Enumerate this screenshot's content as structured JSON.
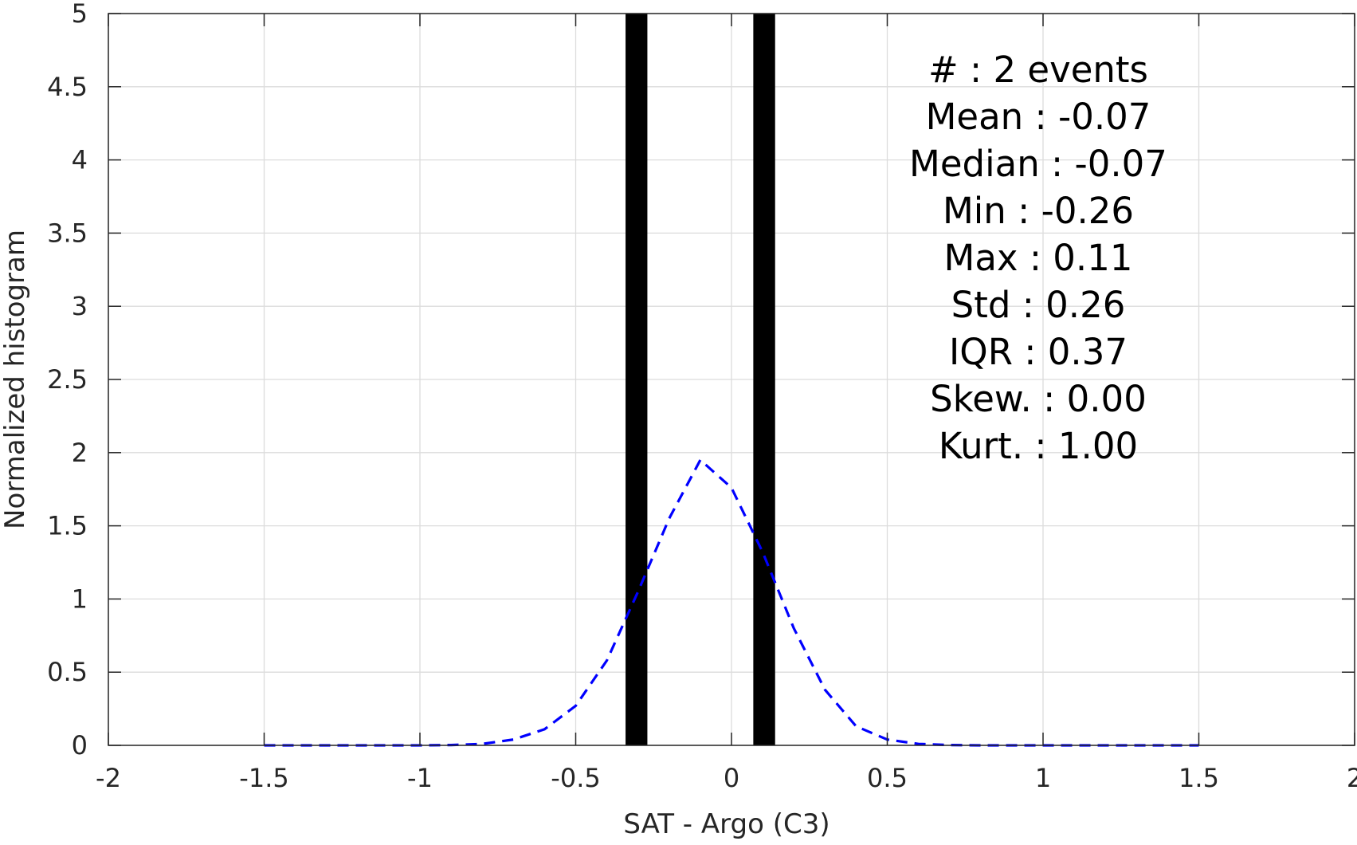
{
  "chart_data": {
    "type": "bar",
    "title": "",
    "xlabel": "SAT - Argo (C3)",
    "ylabel": "Normalized histogram",
    "xlim": [
      -2,
      2
    ],
    "ylim": [
      0,
      5
    ],
    "grid": true,
    "x_ticks": [
      "-2",
      "-1.5",
      "-1",
      "-0.5",
      "0",
      "0.5",
      "1",
      "1.5",
      "2"
    ],
    "y_ticks": [
      "0",
      "0.5",
      "1",
      "1.5",
      "2",
      "2.5",
      "3",
      "3.5",
      "4",
      "4.5",
      "5"
    ],
    "x_tick_values": [
      -2,
      -1.5,
      -1,
      -0.5,
      0,
      0.5,
      1,
      1.5,
      2
    ],
    "y_tick_values": [
      0,
      0.5,
      1,
      1.5,
      2,
      2.5,
      3,
      3.5,
      4,
      4.5,
      5
    ],
    "histogram": {
      "color": "#000000",
      "bins": [
        {
          "x0": -0.34,
          "x1": -0.27,
          "value": 5
        },
        {
          "x0": 0.07,
          "x1": 0.14,
          "value": 5
        }
      ]
    },
    "fit_curve": {
      "color": "#0000ff",
      "style": "dashed",
      "x": [
        -1.5,
        -1.4,
        -1.3,
        -1.2,
        -1.1,
        -1.0,
        -0.9,
        -0.8,
        -0.7,
        -0.6,
        -0.5,
        -0.4,
        -0.3,
        -0.2,
        -0.1,
        0.0,
        0.1,
        0.2,
        0.3,
        0.4,
        0.5,
        0.6,
        0.7,
        0.8,
        0.9,
        1.0,
        1.1,
        1.2,
        1.3,
        1.4,
        1.5
      ],
      "y": [
        0,
        0,
        0,
        0,
        0,
        0,
        0.002,
        0.01,
        0.04,
        0.11,
        0.27,
        0.58,
        1.05,
        1.55,
        1.95,
        1.76,
        1.32,
        0.8,
        0.38,
        0.13,
        0.04,
        0.01,
        0.002,
        0,
        0,
        0,
        0,
        0,
        0,
        0,
        0
      ]
    },
    "stats": [
      "#  : 2 events",
      "Mean : -0.07",
      "Median : -0.07",
      "Min : -0.26",
      "Max : 0.11",
      "Std : 0.26",
      "IQR : 0.37",
      "Skew. : 0.00",
      "Kurt. : 1.00"
    ]
  }
}
